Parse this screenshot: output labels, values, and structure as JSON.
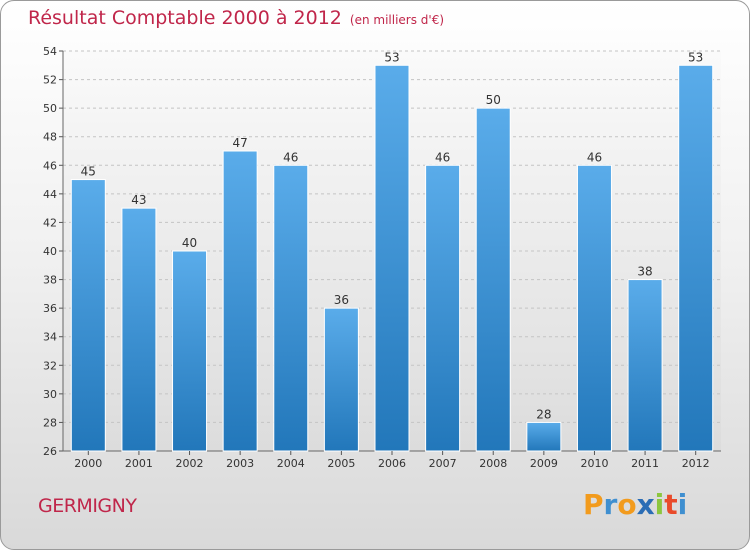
{
  "chart_data": {
    "type": "bar",
    "title": "Résultat Comptable 2000 à 2012",
    "subtitle": "(en milliers d'€)",
    "categories": [
      "2000",
      "2001",
      "2002",
      "2003",
      "2004",
      "2005",
      "2006",
      "2007",
      "2008",
      "2009",
      "2010",
      "2011",
      "2012"
    ],
    "values": [
      45,
      43,
      40,
      47,
      46,
      36,
      53,
      46,
      50,
      28,
      46,
      38,
      53
    ],
    "ylim": [
      26,
      54
    ],
    "yticks": [
      26,
      28,
      30,
      32,
      34,
      36,
      38,
      40,
      42,
      44,
      46,
      48,
      50,
      52,
      54
    ],
    "xlabel": "",
    "ylabel": "",
    "grid": true,
    "bar_color_top": "#5aacea",
    "bar_color_bottom": "#2277ba"
  },
  "commune": "GERMIGNY",
  "logo": {
    "letters": [
      "P",
      "r",
      "o",
      "x",
      "i",
      "t",
      "i"
    ],
    "colors": [
      "#f29b1d",
      "#3f8fd0",
      "#f29b1d",
      "#2b6db5",
      "#8cc63e",
      "#e94b2b",
      "#3f8fd0"
    ]
  }
}
